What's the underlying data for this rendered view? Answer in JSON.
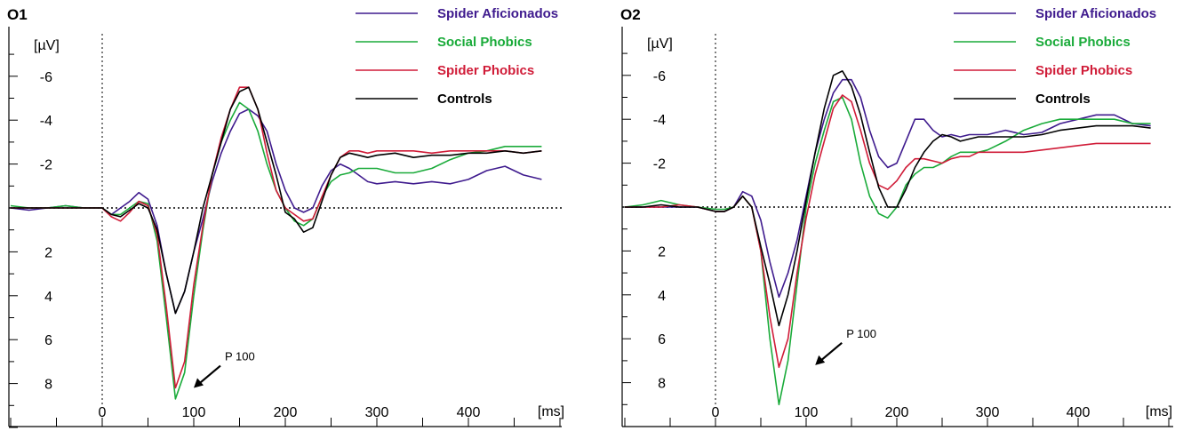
{
  "chart_data": [
    {
      "type": "line",
      "title": "O1",
      "ylabel": "[µV]",
      "xlabel": "[ms]",
      "xlim": [
        -100,
        500
      ],
      "ylim": [
        -7.5,
        10
      ],
      "y_inverted": true,
      "x_ticks": [
        0,
        100,
        200,
        300,
        400
      ],
      "y_ticks": [
        -6,
        -4,
        -2,
        2,
        4,
        6,
        8
      ],
      "annotation": {
        "text": "P 100",
        "x": 100,
        "y": 8.2
      },
      "series": [
        {
          "name": "Spider Aficionados",
          "color": "#3F1B8E",
          "x": [
            -100,
            -80,
            -60,
            -40,
            -20,
            0,
            10,
            20,
            30,
            40,
            50,
            60,
            70,
            80,
            90,
            100,
            110,
            120,
            130,
            140,
            150,
            160,
            170,
            180,
            190,
            200,
            210,
            220,
            230,
            240,
            250,
            260,
            270,
            280,
            290,
            300,
            320,
            340,
            360,
            380,
            400,
            420,
            440,
            460,
            480
          ],
          "y": [
            0,
            0.1,
            0,
            -0.1,
            0,
            0,
            0.3,
            0,
            -0.3,
            -0.7,
            -0.4,
            0.8,
            3,
            4.8,
            3.8,
            2,
            0.5,
            -1.2,
            -2.5,
            -3.5,
            -4.3,
            -4.5,
            -4.2,
            -3.5,
            -2,
            -0.8,
            0,
            0.2,
            0,
            -1,
            -1.7,
            -2,
            -1.8,
            -1.5,
            -1.2,
            -1.1,
            -1.2,
            -1.1,
            -1.2,
            -1.1,
            -1.3,
            -1.7,
            -1.9,
            -1.5,
            -1.3
          ]
        },
        {
          "name": "Social Phobics",
          "color": "#1AAB3A",
          "x": [
            -100,
            -80,
            -60,
            -40,
            -20,
            0,
            10,
            20,
            30,
            40,
            50,
            60,
            70,
            80,
            90,
            100,
            110,
            120,
            130,
            140,
            150,
            160,
            170,
            180,
            190,
            200,
            210,
            220,
            230,
            240,
            250,
            260,
            270,
            280,
            290,
            300,
            320,
            340,
            360,
            380,
            400,
            420,
            440,
            460,
            480
          ],
          "y": [
            -0.1,
            0,
            0,
            -0.1,
            0,
            0,
            0.3,
            0.3,
            0,
            -0.3,
            -0.2,
            1.5,
            5,
            8.7,
            7.5,
            4,
            1,
            -1.5,
            -3,
            -4,
            -4.8,
            -4.5,
            -3.5,
            -2,
            -0.8,
            0,
            0.6,
            0.8,
            0.5,
            -0.5,
            -1.2,
            -1.5,
            -1.6,
            -1.8,
            -1.8,
            -1.8,
            -1.6,
            -1.6,
            -1.8,
            -2.2,
            -2.5,
            -2.6,
            -2.8,
            -2.8,
            -2.8
          ]
        },
        {
          "name": "Spider Phobics",
          "color": "#D01C38",
          "x": [
            -100,
            -80,
            -60,
            -40,
            -20,
            0,
            10,
            20,
            30,
            40,
            50,
            60,
            70,
            80,
            90,
            100,
            110,
            120,
            130,
            140,
            150,
            160,
            170,
            180,
            190,
            200,
            210,
            220,
            230,
            240,
            250,
            260,
            270,
            280,
            290,
            300,
            320,
            340,
            360,
            380,
            400,
            420,
            440,
            460,
            480
          ],
          "y": [
            0,
            0,
            0,
            0,
            0,
            0,
            0.4,
            0.6,
            0.2,
            -0.3,
            -0.1,
            1.2,
            4.5,
            8.2,
            7,
            3.5,
            0.8,
            -1.5,
            -3.2,
            -4.5,
            -5.5,
            -5.5,
            -4.5,
            -2.5,
            -0.8,
            0,
            0.3,
            0.6,
            0.5,
            -0.5,
            -1.5,
            -2.3,
            -2.6,
            -2.6,
            -2.5,
            -2.6,
            -2.6,
            -2.6,
            -2.5,
            -2.6,
            -2.6,
            -2.6,
            -2.6,
            -2.5,
            -2.6
          ]
        },
        {
          "name": "Controls",
          "color": "#000000",
          "x": [
            -100,
            -80,
            -60,
            -40,
            -20,
            0,
            10,
            20,
            30,
            40,
            50,
            60,
            70,
            80,
            90,
            100,
            110,
            120,
            130,
            140,
            150,
            160,
            170,
            180,
            190,
            200,
            210,
            220,
            230,
            240,
            250,
            260,
            270,
            280,
            290,
            300,
            320,
            340,
            360,
            380,
            400,
            420,
            440,
            460,
            480
          ],
          "y": [
            0,
            0,
            0,
            0,
            0,
            0,
            0.3,
            0.4,
            0.1,
            -0.2,
            0,
            1,
            3,
            4.8,
            3.8,
            2,
            0,
            -1.5,
            -3,
            -4.5,
            -5.3,
            -5.5,
            -4.5,
            -3,
            -1.5,
            0.2,
            0.5,
            1.1,
            0.9,
            -0.3,
            -1.5,
            -2.3,
            -2.5,
            -2.4,
            -2.3,
            -2.4,
            -2.5,
            -2.3,
            -2.4,
            -2.4,
            -2.5,
            -2.5,
            -2.6,
            -2.5,
            -2.6
          ]
        }
      ]
    },
    {
      "type": "line",
      "title": "O2",
      "ylabel": "[µV]",
      "xlabel": "[ms]",
      "xlim": [
        -100,
        500
      ],
      "ylim": [
        -7.5,
        10
      ],
      "y_inverted": true,
      "x_ticks": [
        0,
        100,
        200,
        300,
        400
      ],
      "y_ticks": [
        -6,
        -4,
        -2,
        2,
        4,
        6,
        8
      ],
      "annotation": {
        "text": "P 100",
        "x": 110,
        "y": 7.2
      },
      "series": [
        {
          "name": "Spider Aficionados",
          "color": "#3F1B8E",
          "x": [
            -100,
            -80,
            -60,
            -40,
            -20,
            0,
            10,
            20,
            30,
            40,
            50,
            60,
            70,
            80,
            90,
            100,
            110,
            120,
            130,
            140,
            150,
            160,
            170,
            180,
            190,
            200,
            210,
            220,
            230,
            240,
            250,
            260,
            270,
            280,
            290,
            300,
            320,
            340,
            360,
            380,
            400,
            420,
            440,
            460,
            480
          ],
          "y": [
            0,
            0,
            0,
            0,
            0,
            0.2,
            0.2,
            0,
            -0.7,
            -0.5,
            0.6,
            2.5,
            4.1,
            3,
            1.5,
            -0.5,
            -2.5,
            -4,
            -5.2,
            -5.8,
            -5.8,
            -5,
            -3.5,
            -2.3,
            -1.8,
            -2,
            -3,
            -4,
            -4,
            -3.5,
            -3.2,
            -3.3,
            -3.2,
            -3.3,
            -3.3,
            -3.3,
            -3.5,
            -3.3,
            -3.4,
            -3.8,
            -4,
            -4.2,
            -4.2,
            -3.8,
            -3.7
          ]
        },
        {
          "name": "Social Phobics",
          "color": "#1AAB3A",
          "x": [
            -100,
            -80,
            -60,
            -40,
            -20,
            0,
            10,
            20,
            30,
            40,
            50,
            60,
            70,
            80,
            90,
            100,
            110,
            120,
            130,
            140,
            150,
            160,
            170,
            180,
            190,
            200,
            210,
            220,
            230,
            240,
            250,
            260,
            270,
            280,
            290,
            300,
            320,
            340,
            360,
            380,
            400,
            420,
            440,
            460,
            480
          ],
          "y": [
            0,
            -0.1,
            -0.3,
            -0.1,
            0,
            0.1,
            0.1,
            0,
            -0.5,
            0,
            2,
            6,
            9,
            7,
            3.5,
            0,
            -2,
            -3.5,
            -4.8,
            -5,
            -4,
            -2,
            -0.5,
            0.3,
            0.5,
            0,
            -1,
            -1.5,
            -1.8,
            -1.8,
            -2,
            -2.3,
            -2.5,
            -2.5,
            -2.5,
            -2.6,
            -3,
            -3.5,
            -3.8,
            -4,
            -4,
            -4,
            -4,
            -3.8,
            -3.8
          ]
        },
        {
          "name": "Spider Phobics",
          "color": "#D01C38",
          "x": [
            -100,
            -80,
            -60,
            -40,
            -20,
            0,
            10,
            20,
            30,
            40,
            50,
            60,
            70,
            80,
            90,
            100,
            110,
            120,
            130,
            140,
            150,
            160,
            170,
            180,
            190,
            200,
            210,
            220,
            230,
            240,
            250,
            260,
            270,
            280,
            290,
            300,
            320,
            340,
            360,
            380,
            400,
            420,
            440,
            460,
            480
          ],
          "y": [
            0,
            0,
            0,
            -0.1,
            0,
            0.2,
            0.2,
            0,
            -0.5,
            0,
            2,
            5,
            7.3,
            6,
            3,
            0.5,
            -1.5,
            -3,
            -4.5,
            -5.1,
            -4.8,
            -3.5,
            -2,
            -1,
            -0.8,
            -1.2,
            -1.8,
            -2.2,
            -2.2,
            -2.1,
            -2,
            -2.2,
            -2.3,
            -2.3,
            -2.5,
            -2.5,
            -2.5,
            -2.5,
            -2.6,
            -2.7,
            -2.8,
            -2.9,
            -2.9,
            -2.9,
            -2.9
          ]
        },
        {
          "name": "Controls",
          "color": "#000000",
          "x": [
            -100,
            -80,
            -60,
            -40,
            -20,
            0,
            10,
            20,
            30,
            40,
            50,
            60,
            70,
            80,
            90,
            100,
            110,
            120,
            130,
            140,
            150,
            160,
            170,
            180,
            190,
            200,
            210,
            220,
            230,
            240,
            250,
            260,
            270,
            280,
            290,
            300,
            320,
            340,
            360,
            380,
            400,
            420,
            440,
            460,
            480
          ],
          "y": [
            0,
            0,
            -0.1,
            0,
            0,
            0.2,
            0.2,
            0,
            -0.5,
            0,
            1.8,
            3.5,
            5.4,
            4,
            2,
            -0.3,
            -2.5,
            -4.5,
            -6,
            -6.2,
            -5.5,
            -4.2,
            -2.5,
            -0.9,
            0,
            0,
            -0.8,
            -1.8,
            -2.5,
            -3,
            -3.3,
            -3.2,
            -3,
            -3.1,
            -3.2,
            -3.2,
            -3.2,
            -3.2,
            -3.3,
            -3.5,
            -3.6,
            -3.7,
            -3.7,
            -3.7,
            -3.6
          ]
        }
      ]
    }
  ]
}
